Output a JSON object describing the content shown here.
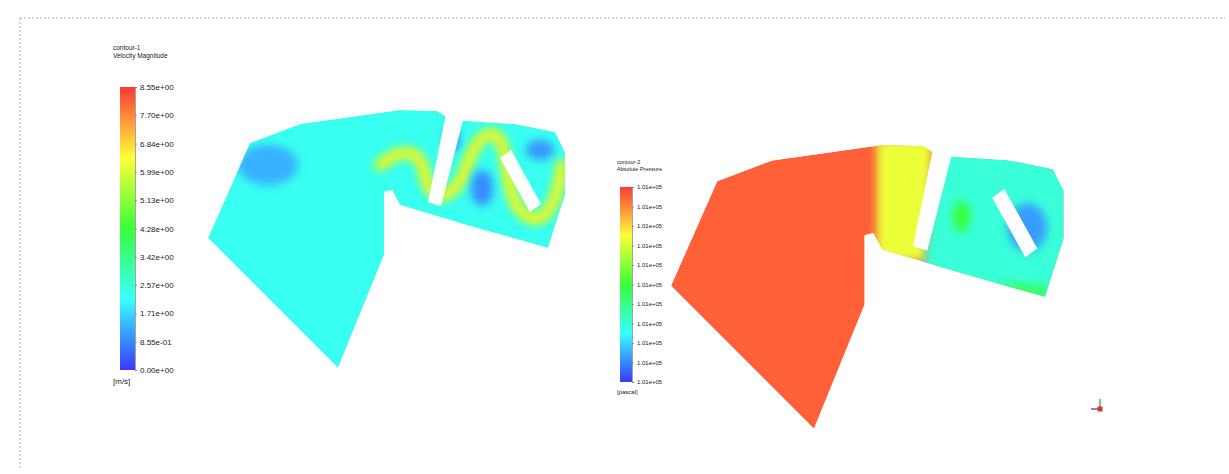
{
  "chart_data": [
    {
      "type": "contour",
      "title": "contour-1",
      "subtitle": "Velocity Magnitude",
      "colorbar_title": "[m/s]",
      "colorbar_lim": [
        0,
        8.55
      ],
      "colorbar_ticks": [
        {
          "value": 0,
          "label": "0.00e+00"
        },
        {
          "value": 0.855,
          "label": "8.55e-01"
        },
        {
          "value": 1.71,
          "label": "1.71e+00"
        },
        {
          "value": 2.565,
          "label": "2.57e+00"
        },
        {
          "value": 3.42,
          "label": "3.42e+00"
        },
        {
          "value": 4.275,
          "label": "4.28e+00"
        },
        {
          "value": 5.13,
          "label": "5.13e+00"
        },
        {
          "value": 5.985,
          "label": "5.99e+00"
        },
        {
          "value": 6.84,
          "label": "6.84e+00"
        },
        {
          "value": 7.695,
          "label": "7.70e+00"
        },
        {
          "value": 8.55,
          "label": "8.55e+00"
        }
      ],
      "values": [
        2.3,
        1.3,
        5.6,
        6.6,
        0.9,
        1.0,
        0.9
      ]
    },
    {
      "type": "contour",
      "title": "contour-2",
      "subtitle": "Absolute Pressure",
      "colorbar_title": "[pascal]",
      "colorbar_lim": [
        101300,
        101340
      ],
      "colorbar_ticks": [
        {
          "value": 101300,
          "label": "1.01e+05"
        },
        {
          "value": 101304,
          "label": "1.01e+05"
        },
        {
          "value": 101308,
          "label": "1.01e+05"
        },
        {
          "value": 101312,
          "label": "1.01e+05"
        },
        {
          "value": 101316,
          "label": "1.01e+05"
        },
        {
          "value": 101320,
          "label": "1.01e+05"
        },
        {
          "value": 101324,
          "label": "1.01e+05"
        },
        {
          "value": 101328,
          "label": "1.01e+05"
        },
        {
          "value": 101332,
          "label": "1.01e+05"
        },
        {
          "value": 101336,
          "label": "1.01e+05"
        },
        {
          "value": 101340,
          "label": "1.01e+05"
        }
      ],
      "values": [
        101338,
        101329,
        101312,
        101305,
        101318,
        101320
      ]
    }
  ]
}
